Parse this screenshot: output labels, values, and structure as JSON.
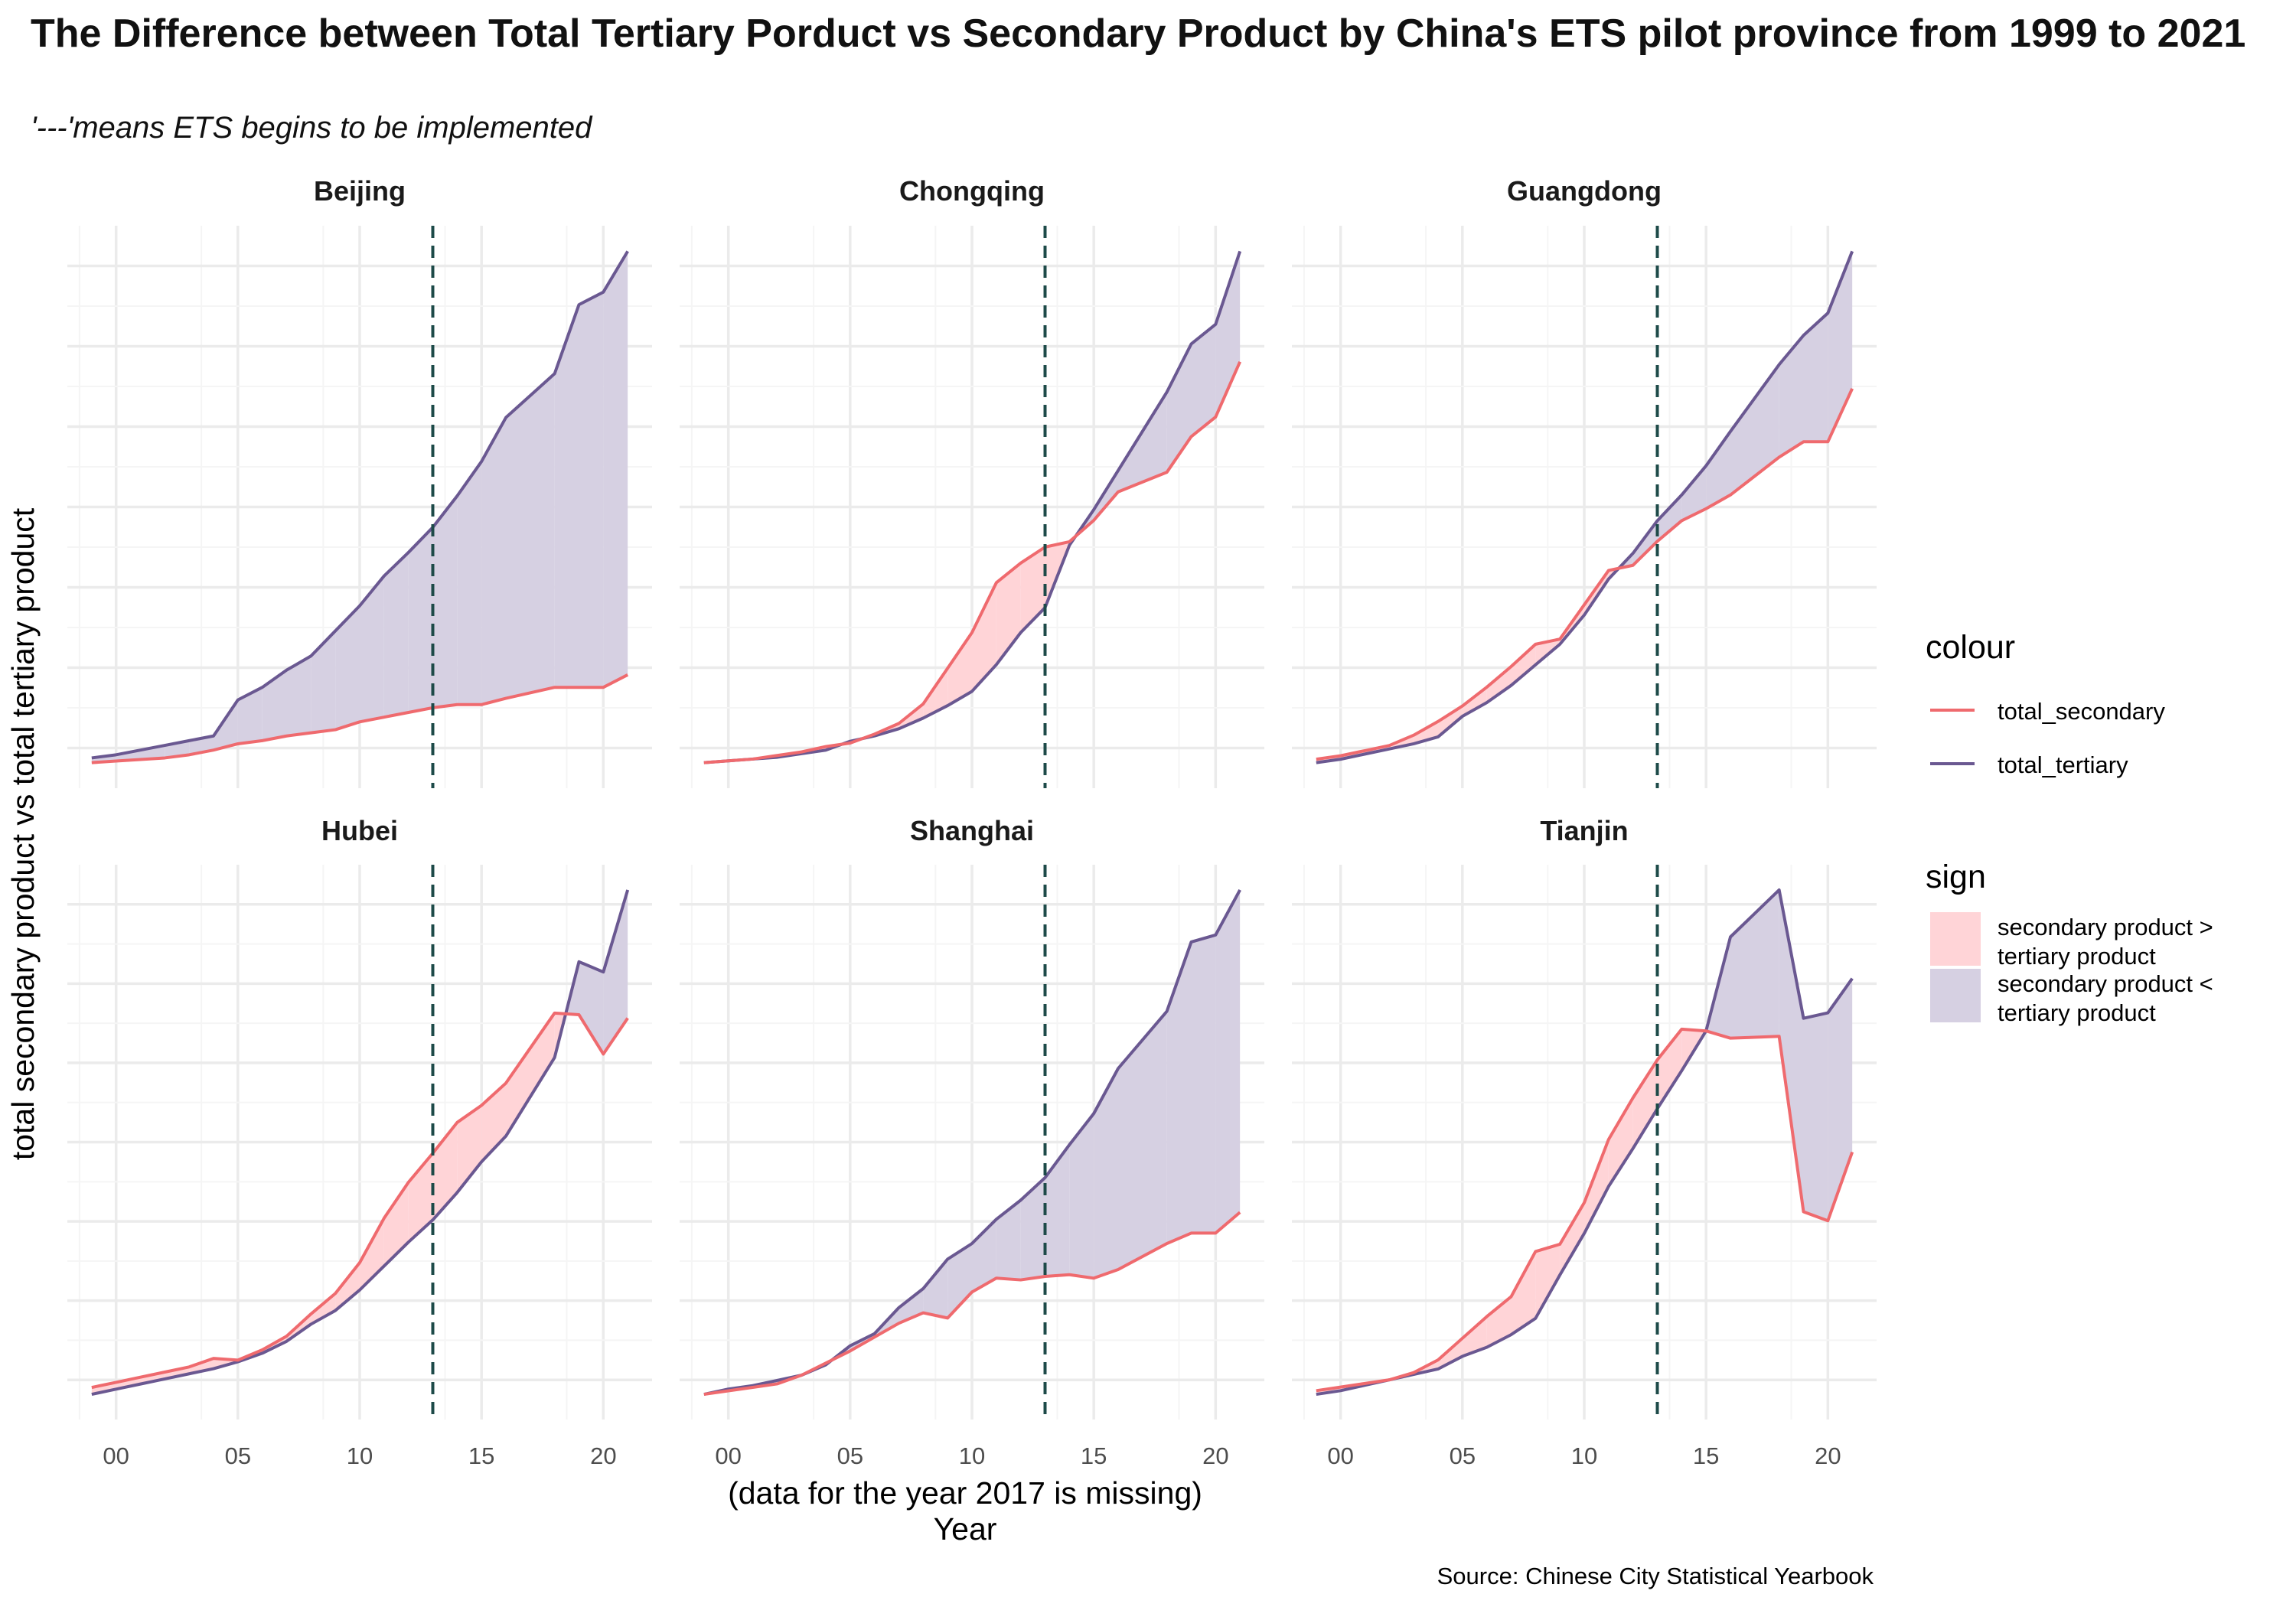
{
  "title": "The Difference between Total Tertiary Porduct vs Secondary Product by China's ETS pilot province from 1999 to 2021",
  "subtitle": "'---'means ETS begins to be implemented",
  "caption": "Source: Chinese City Statistical Yearbook",
  "colors": {
    "secondary": "#ef6a6e",
    "tertiary": "#6a5891",
    "fill_secondary_greater": "#ffd4d7",
    "fill_tertiary_greater": "#d6d0e2",
    "vline": "#1d4a48",
    "grid_major": "#ebebeb",
    "grid_minor": "#f5f5f5"
  },
  "legend": {
    "colour_title": "colour",
    "colour_items": [
      "total_secondary",
      "total_tertiary"
    ],
    "sign_title": "sign",
    "sign_items": [
      [
        "secondary product >",
        "tertiary product"
      ],
      [
        "secondary product <",
        "tertiary product"
      ]
    ]
  },
  "chart_data": {
    "type": "line",
    "facet_by": "province",
    "scales": "free_y",
    "xlabel": [
      "(data for the year 2017 is missing)",
      "Year"
    ],
    "ylabel": "total secondary product vs total tertiary product",
    "x_ticks": [
      2000,
      2005,
      2010,
      2015,
      2020
    ],
    "x_tick_labels": [
      "00",
      "05",
      "10",
      "15",
      "20"
    ],
    "xlim": [
      1998,
      2022
    ],
    "y_tick_labels": "none",
    "ets_start_year": 2013,
    "note": "y axes unlabeled; values below are relative readings in the same arbitrary units within each panel",
    "x": [
      1999,
      2000,
      2001,
      2002,
      2003,
      2004,
      2005,
      2006,
      2007,
      2008,
      2009,
      2010,
      2011,
      2012,
      2013,
      2014,
      2015,
      2016,
      2018,
      2019,
      2020,
      2021
    ],
    "panels": [
      {
        "province": "Beijing",
        "total_secondary": [
          14,
          15,
          16,
          17,
          19,
          22,
          26,
          28,
          31,
          33,
          35,
          40,
          43,
          46,
          49,
          51,
          51,
          55,
          62,
          62,
          62,
          70
        ],
        "total_tertiary": [
          17,
          19,
          22,
          25,
          28,
          31,
          54,
          62,
          73,
          82,
          98,
          114,
          133,
          148,
          164,
          184,
          206,
          234,
          262,
          306,
          314,
          340
        ]
      },
      {
        "province": "Chongqing",
        "total_secondary": [
          5,
          6,
          7,
          9,
          11,
          14,
          16,
          21,
          27,
          38,
          58,
          78,
          106,
          117,
          126,
          129,
          141,
          157,
          168,
          188,
          199,
          230
        ],
        "total_tertiary": [
          5,
          6,
          7,
          8,
          10,
          12,
          17,
          20,
          24,
          30,
          37,
          45,
          60,
          78,
          92,
          127,
          147,
          169,
          213,
          240,
          251,
          292
        ]
      },
      {
        "province": "Guangdong",
        "total_secondary": [
          6,
          8,
          11,
          14,
          20,
          28,
          37,
          48,
          60,
          73,
          76,
          96,
          116,
          119,
          133,
          145,
          152,
          160,
          182,
          191,
          191,
          222
        ],
        "total_tertiary": [
          4,
          6,
          9,
          12,
          15,
          19,
          31,
          39,
          49,
          61,
          73,
          90,
          111,
          126,
          145,
          160,
          177,
          197,
          236,
          253,
          266,
          302
        ]
      },
      {
        "province": "Hubei",
        "total_secondary": [
          7,
          10,
          13,
          16,
          19,
          24,
          23,
          29,
          37,
          50,
          62,
          80,
          106,
          127,
          144,
          162,
          172,
          185,
          226,
          225,
          202,
          223
        ],
        "total_tertiary": [
          3,
          6,
          9,
          12,
          15,
          18,
          22,
          27,
          34,
          44,
          52,
          64,
          78,
          92,
          105,
          121,
          139,
          154,
          200,
          256,
          250,
          298
        ]
      },
      {
        "province": "Shanghai",
        "total_secondary": [
          2,
          4,
          6,
          8,
          13,
          20,
          27,
          35,
          43,
          49,
          46,
          61,
          69,
          68,
          70,
          71,
          69,
          74,
          89,
          95,
          95,
          107
        ],
        "total_tertiary": [
          2,
          5,
          7,
          10,
          13,
          19,
          30,
          37,
          52,
          63,
          80,
          89,
          103,
          114,
          127,
          146,
          164,
          190,
          223,
          263,
          267,
          293
        ]
      },
      {
        "province": "Tianjin",
        "total_secondary": [
          6,
          8,
          10,
          12,
          16,
          23,
          35,
          47,
          58,
          83,
          87,
          110,
          145,
          168,
          189,
          206,
          205,
          201,
          202,
          105,
          100,
          138
        ],
        "total_tertiary": [
          4,
          6,
          9,
          12,
          15,
          18,
          25,
          30,
          37,
          46,
          70,
          93,
          119,
          140,
          162,
          183,
          205,
          257,
          283,
          212,
          215,
          234
        ]
      }
    ]
  }
}
